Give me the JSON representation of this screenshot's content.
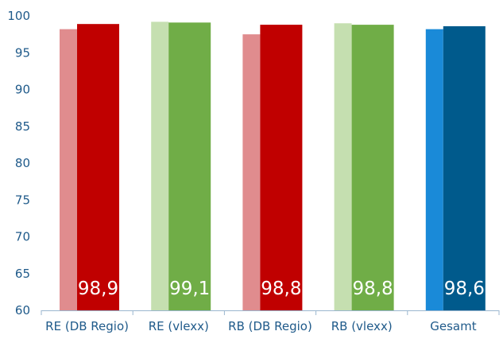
{
  "chart_data": {
    "type": "bar",
    "title": "",
    "xlabel": "",
    "ylabel": "",
    "ylim": [
      60,
      100
    ],
    "yticks": [
      60,
      65,
      70,
      75,
      80,
      85,
      90,
      95,
      100
    ],
    "grid": false,
    "legend": "none",
    "categories": [
      "RE (DB Regio)",
      "RE (vlexx)",
      "RB (DB Regio)",
      "RB (vlexx)",
      "Gesamt"
    ],
    "series": [
      {
        "values": [
          98.2,
          99.2,
          97.5,
          99.0,
          98.2
        ],
        "colors": [
          "#e08c8e",
          "#c5dfb0",
          "#e08c8e",
          "#c5dfb0",
          "#1a8ad8"
        ]
      },
      {
        "values": [
          98.9,
          99.1,
          98.8,
          98.8,
          98.6
        ],
        "colors": [
          "#c00000",
          "#70ad47",
          "#c00000",
          "#70ad47",
          "#005a8c"
        ]
      }
    ],
    "data_labels": [
      "98,9",
      "99,1",
      "98,8",
      "98,8",
      "98,6"
    ],
    "axis_color": "#9ab6cf",
    "text_color": "#1f5a8a"
  }
}
